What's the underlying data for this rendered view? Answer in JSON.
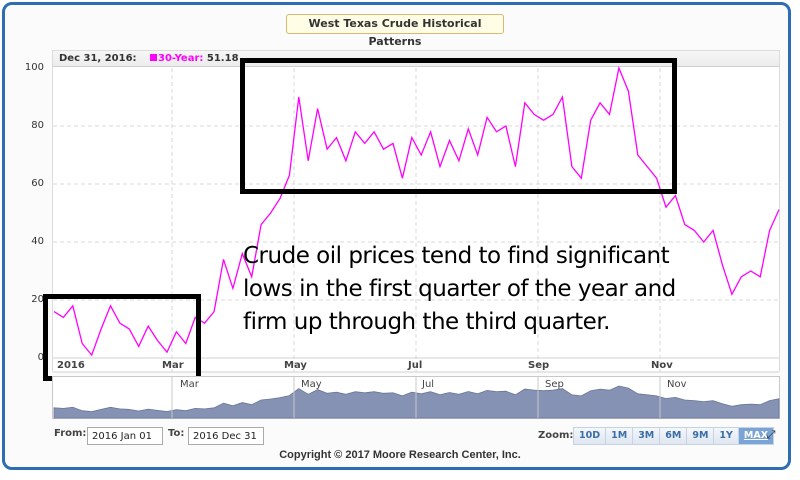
{
  "title": "West Texas Crude Historical Patterns",
  "header": {
    "date": "Dec 31, 2016:",
    "series_label": "30-Year:",
    "series_value": "51.18"
  },
  "annotation": {
    "lines": [
      "Crude oil prices tend to find significant",
      "lows in the first quarter of the year and",
      "firm up through the third quarter."
    ]
  },
  "navigator": {
    "labels": [
      "Mar",
      "May",
      "Jul",
      "Sep",
      "Nov"
    ]
  },
  "range": {
    "from_label": "From:",
    "from_value": "2016 Jan 01",
    "to_label": "To:",
    "to_value": "2016 Dec 31"
  },
  "zoom": {
    "label": "Zoom:",
    "buttons": [
      "10D",
      "1M",
      "3M",
      "6M",
      "9M",
      "1Y",
      "MAX"
    ],
    "active": "MAX"
  },
  "copyright": "Copyright © 2017 Moore Research Center, Inc.",
  "colors": {
    "series": "#ff00ff",
    "frame": "#2d6db3",
    "navigator_fill": "#8592b3"
  },
  "chart_data": {
    "type": "line",
    "title": "West Texas Crude Historical Patterns",
    "xlabel": "",
    "ylabel": "",
    "ylim": [
      0,
      100
    ],
    "yticks": [
      0,
      20,
      40,
      60,
      80,
      100
    ],
    "xticks": [
      "2016",
      "Mar",
      "May",
      "Jul",
      "Sep",
      "Nov"
    ],
    "grid": true,
    "legend": "header",
    "series": [
      {
        "name": "30-Year",
        "color": "#ff00ff",
        "x": [
          "Jan 01",
          "Jan 05",
          "Jan 08",
          "Jan 12",
          "Jan 15",
          "Jan 19",
          "Jan 22",
          "Jan 26",
          "Jan 29",
          "Feb 02",
          "Feb 05",
          "Feb 09",
          "Feb 12",
          "Feb 16",
          "Feb 19",
          "Feb 23",
          "Feb 26",
          "Mar 01",
          "Mar 05",
          "Mar 10",
          "Mar 15",
          "Mar 20",
          "Mar 25",
          "Mar 31",
          "Apr 05",
          "Apr 10",
          "Apr 15",
          "Apr 20",
          "Apr 25",
          "Apr 30",
          "May 05",
          "May 10",
          "May 15",
          "May 20",
          "May 25",
          "May 31",
          "Jun 05",
          "Jun 10",
          "Jun 15",
          "Jun 20",
          "Jun 25",
          "Jun 30",
          "Jul 05",
          "Jul 10",
          "Jul 15",
          "Jul 20",
          "Jul 25",
          "Jul 31",
          "Aug 05",
          "Aug 10",
          "Aug 15",
          "Aug 20",
          "Aug 25",
          "Aug 31",
          "Sep 05",
          "Sep 10",
          "Sep 15",
          "Sep 20",
          "Sep 25",
          "Sep 30",
          "Oct 05",
          "Oct 10",
          "Oct 15",
          "Oct 20",
          "Oct 25",
          "Oct 31",
          "Nov 05",
          "Nov 10",
          "Nov 15",
          "Nov 20",
          "Nov 25",
          "Nov 30",
          "Dec 05",
          "Dec 10",
          "Dec 15",
          "Dec 20",
          "Dec 25",
          "Dec 31"
        ],
        "values": [
          16,
          14,
          18,
          5,
          1,
          10,
          18,
          12,
          10,
          4,
          11,
          6,
          2,
          9,
          5,
          14,
          12,
          16,
          34,
          24,
          36,
          28,
          46,
          50,
          55,
          63,
          90,
          68,
          86,
          72,
          76,
          68,
          78,
          74,
          78,
          72,
          74,
          62,
          76,
          70,
          78,
          66,
          75,
          68,
          79,
          70,
          83,
          78,
          80,
          66,
          88,
          84,
          82,
          84,
          90,
          66,
          62,
          82,
          88,
          84,
          100,
          92,
          70,
          66,
          62,
          52,
          56,
          46,
          44,
          40,
          44,
          32,
          22,
          28,
          30,
          28,
          44,
          51.18
        ]
      }
    ],
    "annotation": "Crude oil prices tend to find significant lows in the first quarter of the year and firm up through the third quarter."
  }
}
